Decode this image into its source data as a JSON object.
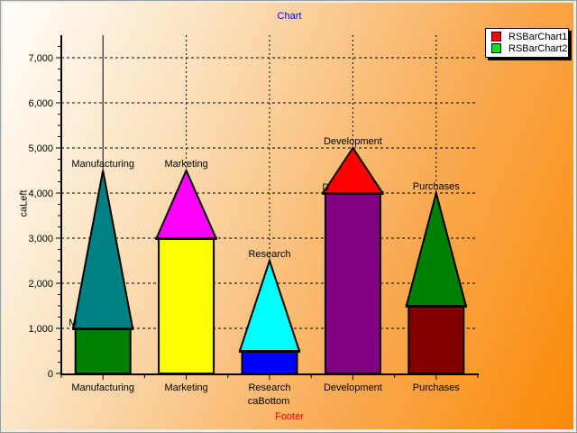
{
  "titles": {
    "title": "Chart",
    "footer": "Footer",
    "left_axis_title": "caLeft",
    "bottom_axis_title": "caBottom"
  },
  "legend": {
    "items": [
      {
        "label": "RSBarChart1",
        "color": "#ff0000"
      },
      {
        "label": "RSBarChart2",
        "color": "#00e41c"
      }
    ]
  },
  "colors": {
    "title_text": "#0000ff",
    "footer_text": "#ff0000",
    "axis_text": "#000000",
    "background_gradient_start": "#fffefb",
    "background_gradient_end": "#fa8a06"
  },
  "chart_data": {
    "type": "bar",
    "title": "Chart",
    "footer": "Footer",
    "xlabel": "caBottom",
    "ylabel": "caLeft",
    "ylim": [
      0,
      7500
    ],
    "ytick_step": 1000,
    "ytick_labels": [
      "0",
      "1,000",
      "2,000",
      "3,000",
      "4,000",
      "5,000",
      "6,000",
      "7,000"
    ],
    "grid": true,
    "legend_position": "top-right",
    "categories": [
      "Manufacturing",
      "Marketing",
      "Research",
      "Development",
      "Purchases"
    ],
    "series": [
      {
        "name": "RSBarChart1",
        "style": "rectangle-bar",
        "values": [
          1000,
          3000,
          500,
          4000,
          1500
        ],
        "point_colors": [
          "#008000",
          "#ffff00",
          "#0000ff",
          "#800080",
          "#800000"
        ]
      },
      {
        "name": "RSBarChart2",
        "style": "pyramid-bar-stacked-on-series1",
        "values": [
          4500,
          4500,
          2500,
          5000,
          4000
        ],
        "point_colors": [
          "#008080",
          "#ff00ff",
          "#00ffff",
          "#ff0000",
          "#008000"
        ]
      }
    ],
    "point_labels": [
      "Manufacturing",
      "Marketing",
      "Research",
      "Development",
      "Purchases"
    ],
    "partial_bar_top_labels": [
      {
        "text": "M",
        "category_index": 0
      },
      {
        "text": "D",
        "category_index": 3
      }
    ]
  }
}
